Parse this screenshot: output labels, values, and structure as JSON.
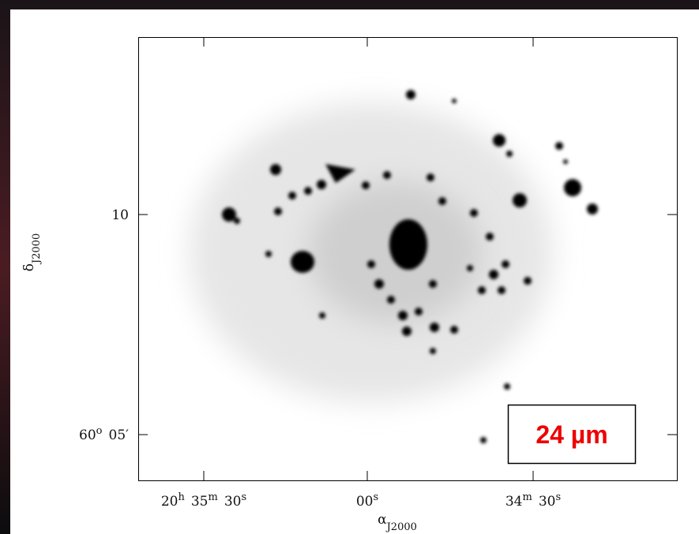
{
  "plot": {
    "x_axis_label": {
      "text": "α",
      "sub": "J2000"
    },
    "y_axis_label": {
      "text": "δ",
      "sub": "J2000"
    },
    "x_tick_labels": [
      [
        {
          "text": "20",
          "sup": "h"
        },
        {
          "text": "35",
          "sup": "m"
        },
        {
          "text": "30",
          "sup": "s"
        }
      ],
      [
        {
          "text": "00",
          "sup": "s"
        }
      ],
      [
        {
          "text": "34",
          "sup": "m"
        },
        {
          "text": "30",
          "sup": "s"
        }
      ]
    ],
    "y_tick_labels": [
      [
        {
          "text": "10"
        }
      ],
      [
        {
          "text": "60",
          "sup": "o"
        },
        {
          "text": "05′"
        }
      ]
    ],
    "band_label": "24 µm"
  }
}
